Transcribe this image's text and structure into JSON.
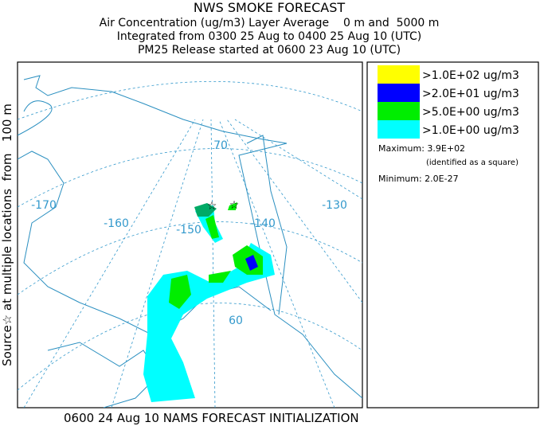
{
  "header": {
    "title": "NWS SMOKE FORECAST",
    "lines": [
      "Air Concentration (ug/m3) Layer Average    0 m and  5000 m",
      "Integrated from 0300 25 Aug to 0400 25 Aug 10 (UTC)",
      "PM25 Release started at 0600 23 Aug 10 (UTC)"
    ]
  },
  "side_label": "Source☆ at multiple locations  from   100 m",
  "footer": "0600 24 Aug 10 NAMS FORECAST INITIALIZATION",
  "map": {
    "labels": [
      "-170",
      "-160",
      "-150",
      "-140",
      "-130",
      "70",
      "60"
    ]
  },
  "legend": {
    "items": [
      {
        "label": ">1.0E+02 ug/m3",
        "color": "#ffff00"
      },
      {
        "label": ">2.0E+01 ug/m3",
        "color": "#0000ff"
      },
      {
        "label": ">5.0E+00 ug/m3",
        "color": "#00ee00"
      },
      {
        "label": ">1.0E+00 ug/m3",
        "color": "#00ffff"
      }
    ],
    "maximum": "Maximum: 3.9E+02",
    "maximum_note": "(identified as a square)",
    "minimum": "Minimum: 2.0E-27"
  }
}
